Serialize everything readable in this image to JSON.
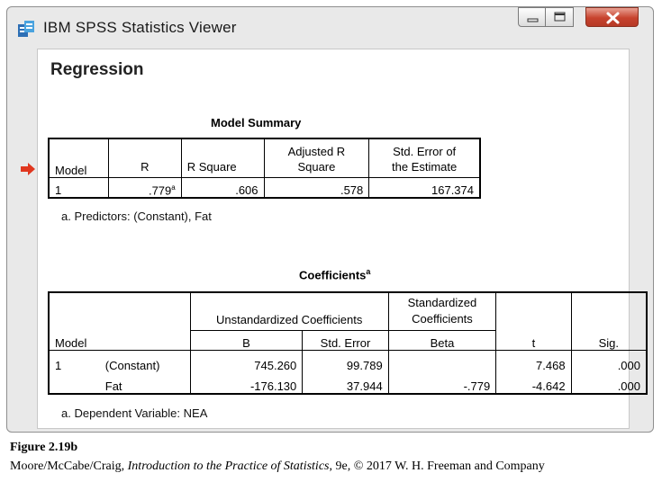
{
  "window": {
    "title": "IBM SPSS Statistics Viewer",
    "controls": [
      "minimize-icon",
      "maximize-icon",
      "close-icon"
    ],
    "accent_close": "#c7432e"
  },
  "output": {
    "heading": "Regression",
    "model_summary": {
      "title": "Model Summary",
      "headers": {
        "model": "Model",
        "r": "R",
        "r_square": "R Square",
        "adj_r_square_1": "Adjusted R",
        "adj_r_square_2": "Square",
        "std_err_1": "Std. Error of",
        "std_err_2": "the Estimate"
      },
      "row": {
        "model": "1",
        "r": ".779",
        "r_sup": "a",
        "r_square": ".606",
        "adj_r_square": ".578",
        "std_err": "167.374"
      },
      "footnote": "a. Predictors: (Constant), Fat"
    },
    "coefficients": {
      "title": "Coefficients",
      "title_sup": "a",
      "headers": {
        "model": "Model",
        "unstd": "Unstandardized Coefficients",
        "std_1": "Standardized",
        "std_2": "Coefficients",
        "b": "B",
        "std_error": "Std. Error",
        "beta": "Beta",
        "t": "t",
        "sig": "Sig."
      },
      "rows": [
        {
          "model": "1",
          "term": "(Constant)",
          "b": "745.260",
          "std_error": "99.789",
          "beta": "",
          "t": "7.468",
          "sig": ".000"
        },
        {
          "model": "",
          "term": "Fat",
          "b": "-176.130",
          "std_error": "37.944",
          "beta": "-.779",
          "t": "-4.642",
          "sig": ".000"
        }
      ],
      "footnote": "a. Dependent Variable: NEA"
    }
  },
  "caption": {
    "figure": "Figure 2.19b",
    "authors": "Moore/McCabe/Craig, ",
    "book": "Introduction to the Practice of Statistics",
    "rest": ", 9e, © 2017 W. H. Freeman and Company"
  }
}
